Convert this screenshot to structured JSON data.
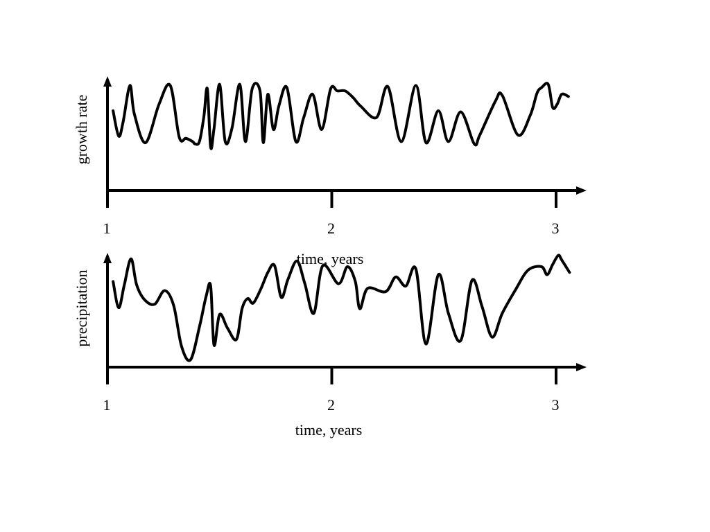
{
  "chart_data": [
    {
      "type": "line",
      "title": "",
      "xlabel": "time, years",
      "ylabel": "growth rate",
      "xlim": [
        1,
        3.05
      ],
      "ylim": [
        0,
        1
      ],
      "x_ticks": [
        {
          "value": 1,
          "label": "1"
        },
        {
          "value": 2,
          "label": "2"
        },
        {
          "value": 3,
          "label": "3"
        }
      ],
      "grid": false,
      "legend": "none",
      "line_color": "#000000",
      "series": [
        {
          "x": [
            1.025,
            1.05,
            1.07,
            1.1,
            1.12,
            1.17,
            1.23,
            1.28,
            1.32,
            1.35,
            1.38,
            1.39,
            1.41,
            1.43,
            1.445,
            1.46,
            1.475,
            1.5,
            1.525,
            1.555,
            1.59,
            1.615,
            1.645,
            1.68,
            1.695,
            1.715,
            1.74,
            1.765,
            1.8,
            1.84,
            1.875,
            1.915,
            1.955,
            1.995,
            2.025,
            2.06,
            2.095,
            2.13,
            2.2,
            2.25,
            2.31,
            2.375,
            2.42,
            2.475,
            2.52,
            2.575,
            2.635,
            2.66,
            2.73,
            2.76,
            2.83,
            2.885,
            2.915,
            2.935,
            2.965,
            2.985,
            3.005,
            3.025,
            3.055
          ],
          "y": [
            0.73,
            0.5,
            0.63,
            0.96,
            0.7,
            0.44,
            0.79,
            0.96,
            0.49,
            0.48,
            0.45,
            0.43,
            0.45,
            0.68,
            0.93,
            0.4,
            0.57,
            0.97,
            0.45,
            0.57,
            0.97,
            0.45,
            0.93,
            0.91,
            0.44,
            0.88,
            0.56,
            0.78,
            0.94,
            0.45,
            0.67,
            0.88,
            0.56,
            0.93,
            0.91,
            0.91,
            0.85,
            0.77,
            0.67,
            0.95,
            0.45,
            0.96,
            0.44,
            0.73,
            0.45,
            0.72,
            0.43,
            0.51,
            0.82,
            0.87,
            0.51,
            0.69,
            0.89,
            0.94,
            0.97,
            0.76,
            0.79,
            0.88,
            0.86
          ]
        }
      ]
    },
    {
      "type": "line",
      "title": "",
      "xlabel": "time, years",
      "ylabel": "precipitation",
      "xlim": [
        1,
        3.05
      ],
      "ylim": [
        0,
        1
      ],
      "x_ticks": [
        {
          "value": 1,
          "label": "1"
        },
        {
          "value": 2,
          "label": "2"
        },
        {
          "value": 3,
          "label": "3"
        }
      ],
      "grid": false,
      "legend": "none",
      "line_color": "#000000",
      "series": [
        {
          "x": [
            1.025,
            1.05,
            1.075,
            1.105,
            1.13,
            1.165,
            1.21,
            1.255,
            1.295,
            1.33,
            1.37,
            1.41,
            1.44,
            1.46,
            1.475,
            1.5,
            1.535,
            1.575,
            1.6,
            1.625,
            1.65,
            1.685,
            1.715,
            1.745,
            1.775,
            1.805,
            1.845,
            1.88,
            1.92,
            1.96,
            2.03,
            2.07,
            2.105,
            2.125,
            2.16,
            2.24,
            2.285,
            2.33,
            2.375,
            2.42,
            2.475,
            2.52,
            2.575,
            2.625,
            2.67,
            2.715,
            2.76,
            2.82,
            2.875,
            2.935,
            2.96,
            2.985,
            3.01,
            3.025,
            3.06
          ],
          "y": [
            0.76,
            0.53,
            0.73,
            0.96,
            0.73,
            0.6,
            0.56,
            0.68,
            0.55,
            0.19,
            0.07,
            0.36,
            0.63,
            0.72,
            0.2,
            0.47,
            0.35,
            0.25,
            0.52,
            0.61,
            0.57,
            0.7,
            0.84,
            0.9,
            0.62,
            0.78,
            0.94,
            0.74,
            0.48,
            0.9,
            0.74,
            0.89,
            0.76,
            0.52,
            0.7,
            0.67,
            0.8,
            0.72,
            0.87,
            0.21,
            0.82,
            0.48,
            0.24,
            0.77,
            0.54,
            0.27,
            0.48,
            0.69,
            0.86,
            0.89,
            0.82,
            0.91,
            0.99,
            0.95,
            0.84
          ]
        }
      ]
    }
  ]
}
